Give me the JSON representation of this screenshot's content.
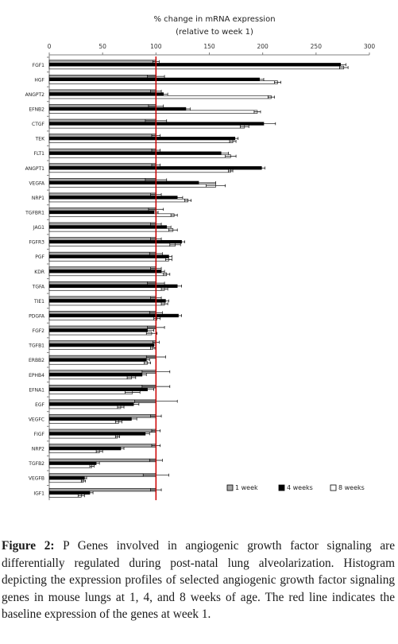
{
  "chart_data": {
    "type": "bar",
    "orientation": "horizontal",
    "title": "% change in mRNA expression",
    "subtitle": "(relative to week 1)",
    "xlim": [
      0,
      300
    ],
    "xticks": [
      0,
      50,
      100,
      150,
      200,
      250,
      300
    ],
    "grid": false,
    "legend_position": "bottom-right",
    "reference_line": {
      "value": 100,
      "color": "#cc0000"
    },
    "categories": [
      "FGF1",
      "HGF",
      "ANGPT2",
      "EFNB2",
      "CTGF",
      "TEK",
      "FLT1",
      "ANGPT1",
      "VEGFA",
      "NRP1",
      "TGFBR1",
      "JAG1",
      "FGFR3",
      "PGF",
      "KDR",
      "TGFA",
      "TIE1",
      "PDGFA",
      "FGF2",
      "TGFB1",
      "ERBB2",
      "EPHB4",
      "EFNA1",
      "EGF",
      "VEGFC",
      "FIGF",
      "NRP2",
      "TGFB2",
      "VEGFB",
      "IGF1"
    ],
    "series": [
      {
        "name": "1 week",
        "color": "#a6a6a6",
        "values": [
          100,
          100,
          100,
          100,
          100,
          100,
          100,
          100,
          100,
          100,
          100,
          100,
          100,
          100,
          100,
          100,
          100,
          100,
          100,
          100,
          100,
          100,
          100,
          100,
          100,
          100,
          100,
          100,
          100,
          100
        ],
        "errors": [
          3,
          8,
          5,
          7,
          10,
          4,
          4,
          4,
          10,
          5,
          7,
          5,
          5,
          6,
          5,
          8,
          5,
          6,
          8,
          3,
          9,
          13,
          13,
          20,
          5,
          4,
          4,
          6,
          12,
          5
        ]
      },
      {
        "name": "4 weeks",
        "color": "#000000",
        "values": [
          273,
          197,
          107,
          128,
          201,
          174,
          161,
          199,
          140,
          120,
          98,
          110,
          124,
          112,
          105,
          120,
          109,
          121,
          92,
          98,
          91,
          87,
          92,
          79,
          77,
          90,
          67,
          44,
          33,
          38
        ],
        "errors": [
          5,
          4,
          4,
          4,
          11,
          3,
          7,
          3,
          16,
          5,
          4,
          4,
          3,
          3,
          3,
          4,
          3,
          3,
          6,
          2,
          3,
          4,
          6,
          5,
          5,
          4,
          3,
          3,
          2,
          3
        ]
      },
      {
        "name": "8 weeks",
        "color": "#ffffff",
        "values": [
          276,
          214,
          208,
          195,
          183,
          172,
          170,
          170,
          156,
          130,
          117,
          116,
          118,
          112,
          110,
          108,
          108,
          101,
          96,
          97,
          92,
          77,
          78,
          67,
          65,
          64,
          47,
          40,
          32,
          30
        ],
        "errors": [
          4,
          3,
          3,
          3,
          4,
          3,
          5,
          2,
          9,
          3,
          3,
          4,
          5,
          3,
          3,
          3,
          3,
          3,
          5,
          2,
          3,
          4,
          7,
          3,
          3,
          2,
          3,
          2,
          2,
          3
        ]
      }
    ]
  },
  "caption": {
    "label": "Figure 2:",
    "text": " P Genes involved in angiogenic growth factor signaling are differentially regulated during post-natal lung alveolarization. Histogram depicting the expression profiles of selected angiogenic growth factor signaling genes in mouse lungs at 1, 4, and 8 weeks of age. The red line indicates the baseline expression of the genes at week 1."
  }
}
